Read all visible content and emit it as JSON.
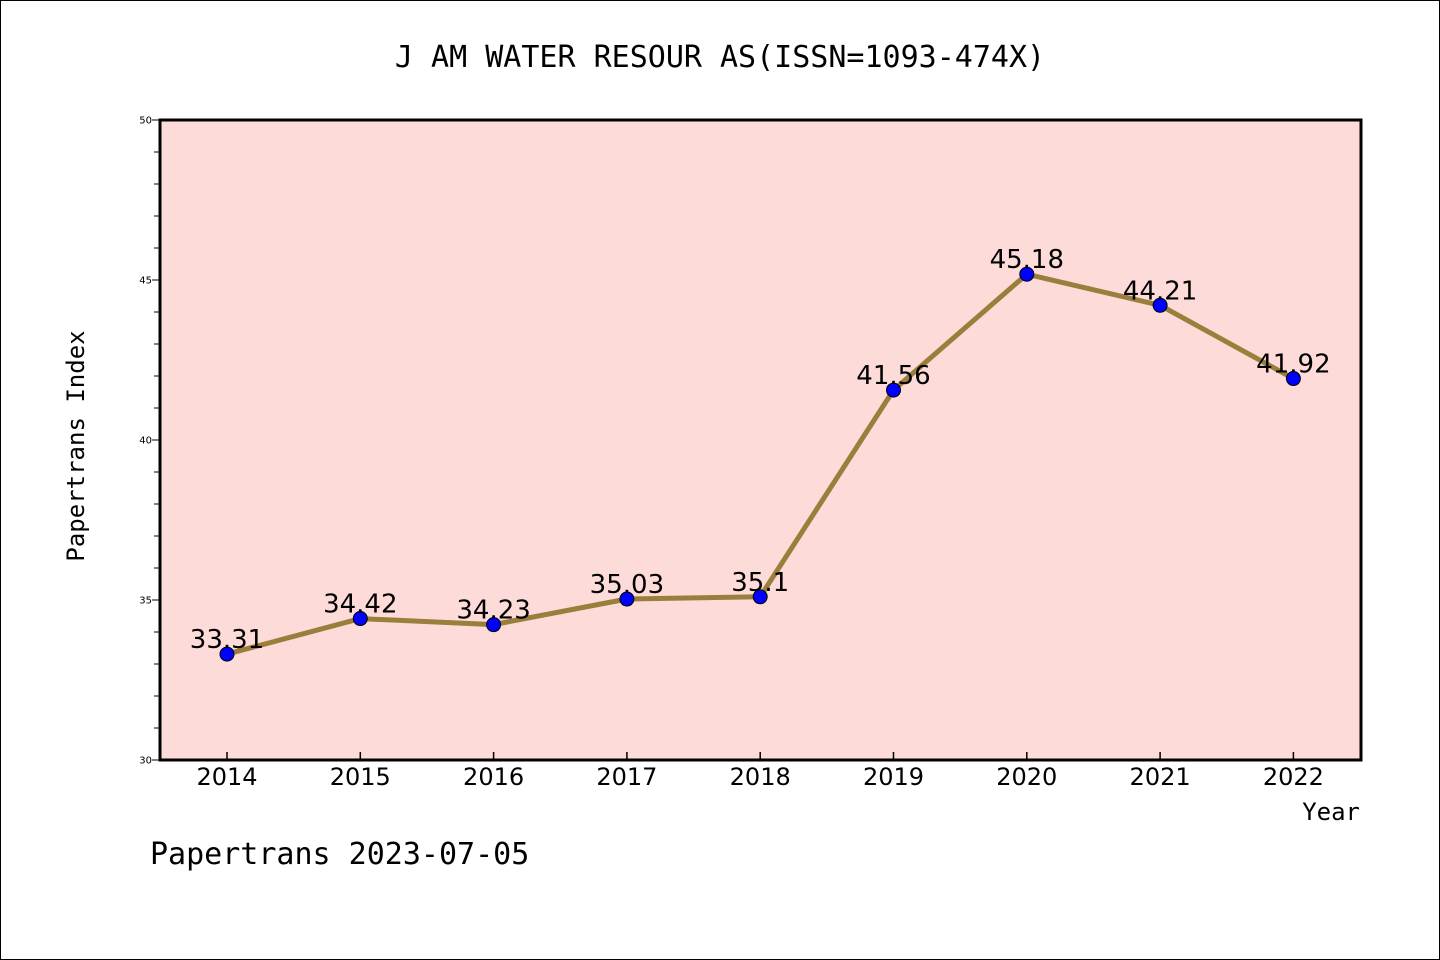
{
  "chart_data": {
    "type": "line",
    "title": "J AM WATER RESOUR AS(ISSN=1093-474X)",
    "xlabel": "Year",
    "ylabel": "Papertrans Index",
    "categories": [
      "2014",
      "2015",
      "2016",
      "2017",
      "2018",
      "2019",
      "2020",
      "2021",
      "2022"
    ],
    "series": [
      {
        "values": [
          33.31,
          34.42,
          34.23,
          35.03,
          35.1,
          41.56,
          45.18,
          44.21,
          41.92
        ],
        "labels": [
          "33.31",
          "34.42",
          "34.23",
          "35.03",
          "35.1",
          "41.56",
          "45.18",
          "44.21",
          "41.92"
        ]
      }
    ],
    "ylim": [
      30,
      50
    ],
    "yticks": [
      "30",
      "35",
      "40",
      "45",
      "50"
    ],
    "grid": false,
    "plot_background": "#fddbd8",
    "line_color": "#9a7e3c",
    "marker_color": "#0000ff"
  },
  "footer": {
    "text": "Papertrans 2023-07-05"
  }
}
